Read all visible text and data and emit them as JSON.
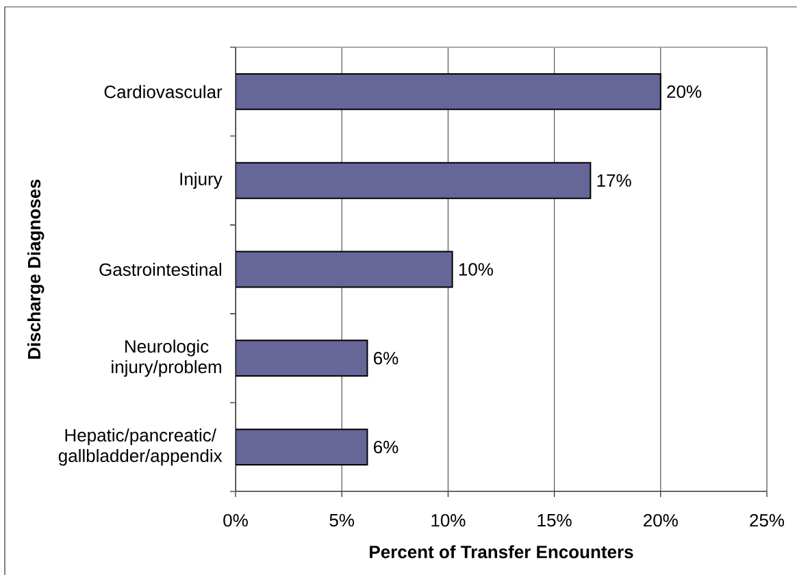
{
  "chart_data": {
    "type": "bar",
    "orientation": "horizontal",
    "xlabel": "Percent of Transfer Encounters",
    "ylabel": "Discharge Diagnoses",
    "categories": [
      "Cardiovascular",
      "Injury",
      "Gastrointestinal",
      "Neurologic injury/problem",
      "Hepatic/pancreatic/gallbladder/appendix"
    ],
    "values": [
      20.0,
      16.7,
      10.2,
      6.2,
      6.2
    ],
    "value_labels": [
      "20%",
      "17%",
      "10%",
      "6%",
      "6%"
    ],
    "color": "#666699",
    "xlim": [
      0,
      25
    ],
    "xticks": [
      {
        "value": 0,
        "label": "0%"
      },
      {
        "value": 5,
        "label": "5%"
      },
      {
        "value": 10,
        "label": "10%"
      },
      {
        "value": 15,
        "label": "15%"
      },
      {
        "value": 20,
        "label": "20%"
      },
      {
        "value": 25,
        "label": "25%"
      }
    ],
    "grid": "x"
  }
}
